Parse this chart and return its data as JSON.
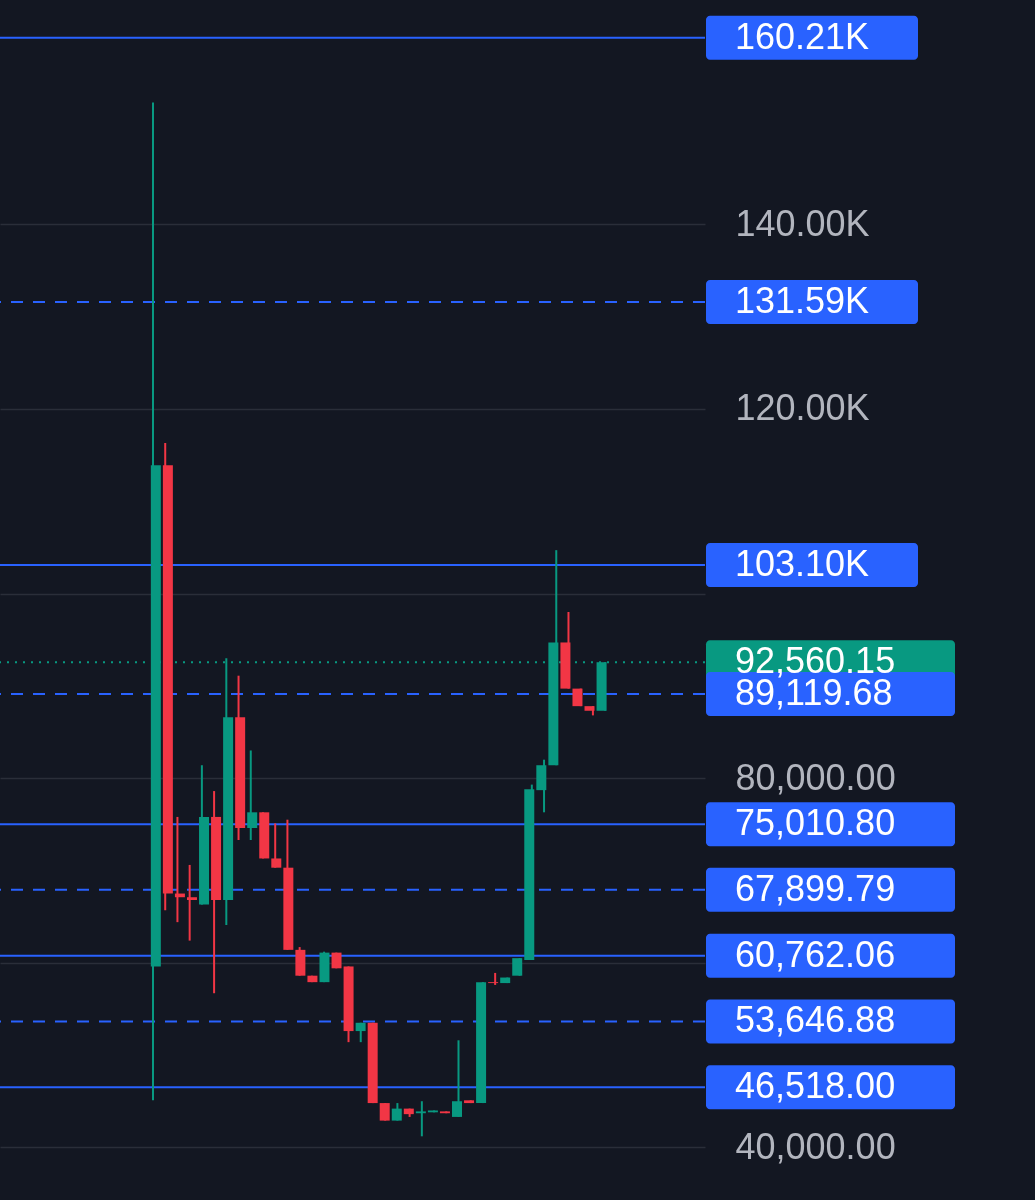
{
  "chart_data": {
    "type": "candlestick",
    "categories": [
      null,
      null,
      null,
      null,
      null,
      null,
      null,
      null,
      null,
      null,
      null,
      null,
      null,
      null,
      null,
      null,
      null,
      null,
      null,
      null,
      null,
      null,
      null,
      null,
      null,
      null,
      null,
      null,
      null,
      null,
      null,
      null,
      null,
      null,
      null,
      null,
      null,
      null
    ],
    "ohlc": [
      [
        59600,
        153200,
        45100,
        113900
      ],
      [
        113900,
        116300,
        65700,
        67500
      ],
      [
        67500,
        75800,
        64400,
        67100
      ],
      [
        67100,
        70600,
        62400,
        66800
      ],
      [
        66300,
        81400,
        66300,
        75800
      ],
      [
        75800,
        78600,
        56700,
        66800
      ],
      [
        66800,
        93000,
        64100,
        86600
      ],
      [
        86600,
        91100,
        73300,
        74600
      ],
      [
        74600,
        83000,
        73300,
        76300
      ],
      [
        76300,
        76300,
        71300,
        71300
      ],
      [
        71300,
        75100,
        70300,
        70300
      ],
      [
        70300,
        75500,
        61400,
        61400
      ],
      [
        61400,
        61700,
        58600,
        58600
      ],
      [
        58600,
        58600,
        57900,
        57900
      ],
      [
        57900,
        61200,
        57900,
        61100
      ],
      [
        61100,
        61100,
        59400,
        59400
      ],
      [
        59600,
        59600,
        51400,
        52600
      ],
      [
        52600,
        53500,
        51400,
        53500
      ],
      [
        53500,
        53500,
        44800,
        44800
      ],
      [
        44800,
        44800,
        42900,
        42900
      ],
      [
        42900,
        44800,
        42900,
        44200
      ],
      [
        44200,
        44200,
        43300,
        43600
      ],
      [
        43700,
        45000,
        41200,
        43900
      ],
      [
        43800,
        44000,
        43800,
        44000
      ],
      [
        43900,
        43900,
        43700,
        43700
      ],
      [
        43300,
        51600,
        43300,
        45000
      ],
      [
        45100,
        45100,
        44800,
        44800
      ],
      [
        44800,
        57900,
        44800,
        57900
      ],
      [
        57900,
        58900,
        57600,
        57800
      ],
      [
        57800,
        58400,
        57800,
        58400
      ],
      [
        58600,
        60500,
        58600,
        60500
      ],
      [
        60300,
        79300,
        60300,
        78800
      ],
      [
        78700,
        82000,
        76300,
        81400
      ],
      [
        81400,
        104700,
        81400,
        94700
      ],
      [
        94700,
        98000,
        89700,
        89700
      ],
      [
        89700,
        89700,
        87800,
        87800
      ],
      [
        87800,
        87800,
        86800,
        87300
      ],
      [
        87300,
        92560.15,
        87300,
        92560.15
      ]
    ],
    "colors": [
      "#089981",
      "#f23645",
      "#f23645",
      "#f23645",
      "#089981",
      "#f23645",
      "#089981",
      "#f23645",
      "#089981",
      "#f23645",
      "#f23645",
      "#f23645",
      "#f23645",
      "#f23645",
      "#089981",
      "#f23645",
      "#f23645",
      "#089981",
      "#f23645",
      "#f23645",
      "#089981",
      "#f23645",
      "#089981",
      "#089981",
      "#f23645",
      "#089981",
      "#f23645",
      "#089981",
      "#f23645",
      "#089981",
      "#089981",
      "#089981",
      "#089981",
      "#089981",
      "#f23645",
      "#f23645",
      "#f23645",
      "#089981"
    ],
    "ylim": [
      34300,
      164300
    ],
    "yticks": [
      {
        "value": 40000,
        "label": "40,000.00"
      },
      {
        "value": 60000,
        "label": null
      },
      {
        "value": 80000,
        "label": "80,000.00"
      },
      {
        "value": 100000,
        "label": null
      },
      {
        "value": 120000,
        "label": "120.00K"
      },
      {
        "value": 140000,
        "label": "140.00K"
      }
    ],
    "grid": "y",
    "tick_labels": "y",
    "ref_lines": [
      {
        "axis": "y",
        "value": 160210,
        "label": "160.21K",
        "color": "#2962ff",
        "line_style": "solid"
      },
      {
        "axis": "y",
        "value": 131590,
        "label": "131.59K",
        "color": "#2962ff",
        "line_style": "dashed"
      },
      {
        "axis": "y",
        "value": 103100,
        "label": "103.10K",
        "color": "#2962ff",
        "line_style": "solid"
      },
      {
        "axis": "y",
        "value": 92560.15,
        "label": "92,560.15",
        "color": "#089981",
        "line_style": "dotted"
      },
      {
        "axis": "y",
        "value": 89119.68,
        "label": "89,119.68",
        "color": "#2962ff",
        "line_style": "dashed"
      },
      {
        "axis": "y",
        "value": 75010.8,
        "label": "75,010.80",
        "color": "#2962ff",
        "line_style": "solid"
      },
      {
        "axis": "y",
        "value": 67899.79,
        "label": "67,899.79",
        "color": "#2962ff",
        "line_style": "dashed"
      },
      {
        "axis": "y",
        "value": 60762.06,
        "label": "60,762.06",
        "color": "#2962ff",
        "line_style": "solid"
      },
      {
        "axis": "y",
        "value": 53646.88,
        "label": "53,646.88",
        "color": "#2962ff",
        "line_style": "dashed"
      },
      {
        "axis": "y",
        "value": 46518.0,
        "label": "46,518.00",
        "color": "#2962ff",
        "line_style": "solid"
      }
    ]
  }
}
